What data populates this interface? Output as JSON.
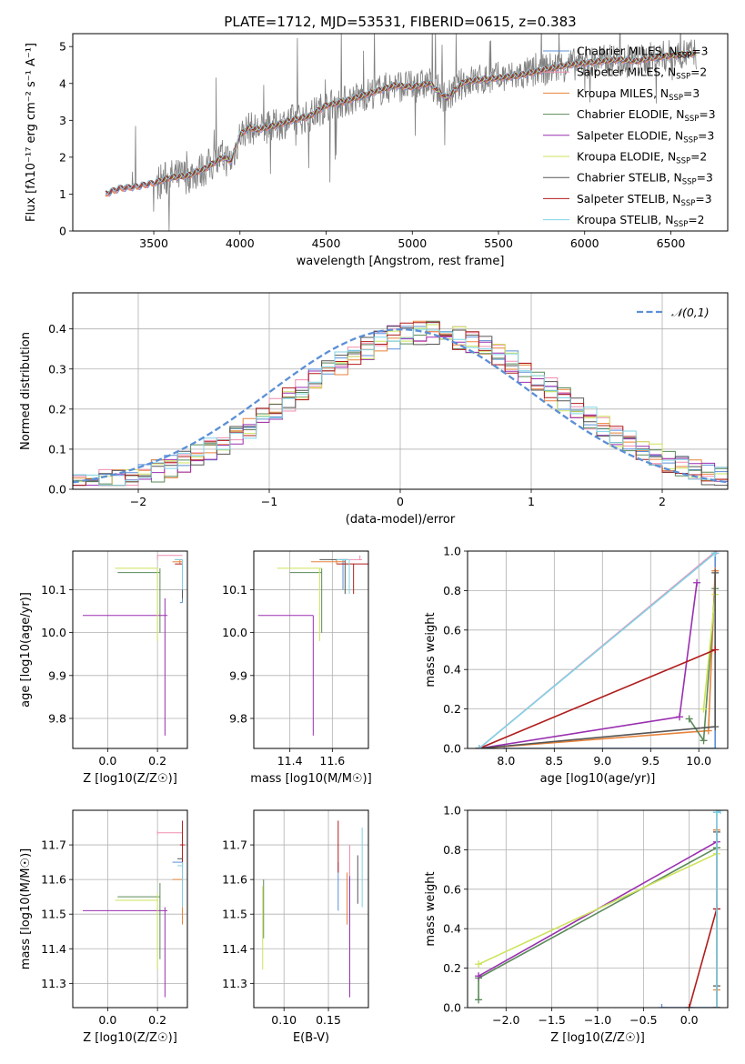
{
  "figure_title": "PLATE=1712, MJD=53531, FIBERID=0615, z=0.383",
  "legend_fits": [
    {
      "label": "Chabrier MILES, N",
      "sub": "SSP",
      "tail": "=3",
      "color": "#5b8fd6"
    },
    {
      "label": "Salpeter MILES, N",
      "sub": "SSP",
      "tail": "=2",
      "color": "#f08db0"
    },
    {
      "label": "Kroupa MILES, N",
      "sub": "SSP",
      "tail": "=3",
      "color": "#e8823a"
    },
    {
      "label": "Chabrier ELODIE, N",
      "sub": "SSP",
      "tail": "=3",
      "color": "#5a8a5a"
    },
    {
      "label": "Salpeter ELODIE, N",
      "sub": "SSP",
      "tail": "=3",
      "color": "#9a2fb0"
    },
    {
      "label": "Kroupa ELODIE, N",
      "sub": "SSP",
      "tail": "=2",
      "color": "#cde35b"
    },
    {
      "label": "Chabrier STELIB, N",
      "sub": "SSP",
      "tail": "=3",
      "color": "#555555"
    },
    {
      "label": "Salpeter STELIB, N",
      "sub": "SSP",
      "tail": "=3",
      "color": "#b01c1c"
    },
    {
      "label": "Kroupa STELIB, N",
      "sub": "SSP",
      "tail": "=2",
      "color": "#7fd3e6"
    }
  ],
  "chart_data": [
    {
      "id": "spectrum",
      "type": "line",
      "xlabel": "wavelength [Angstrom, rest frame]",
      "ylabel": "Flux [fλ10⁻¹⁷ erg cm⁻² s⁻¹ A⁻¹]",
      "xlim": [
        3030,
        6830
      ],
      "ylim": [
        0,
        5.35
      ],
      "xticks": [
        3500,
        4000,
        4500,
        5000,
        5500,
        6000,
        6500
      ],
      "yticks": [
        0,
        1,
        2,
        3,
        4,
        5
      ],
      "grid": false,
      "legend": "right",
      "model_x": [
        3220,
        3300,
        3400,
        3500,
        3600,
        3700,
        3800,
        3900,
        3950,
        4000,
        4050,
        4100,
        4200,
        4300,
        4400,
        4500,
        4600,
        4700,
        4800,
        4900,
        5000,
        5100,
        5200,
        5300,
        5400,
        5500,
        5600,
        5700,
        5800,
        5900,
        6000,
        6100,
        6200,
        6300,
        6400,
        6500,
        6600,
        6650
      ],
      "model_y": [
        1.0,
        1.15,
        1.2,
        1.3,
        1.45,
        1.5,
        1.7,
        2.0,
        1.9,
        2.6,
        2.8,
        2.75,
        2.85,
        3.0,
        3.1,
        3.4,
        3.5,
        3.65,
        3.8,
        3.95,
        3.9,
        4.0,
        3.6,
        4.05,
        4.1,
        4.15,
        4.2,
        4.3,
        4.4,
        4.5,
        4.55,
        4.6,
        4.65,
        4.6,
        4.7,
        4.75,
        4.8,
        4.8
      ],
      "data_noise": "noisy observed spectrum (grey) around the models, 3220-6650 A"
    },
    {
      "id": "residuals",
      "type": "histogram",
      "xlabel": "(data-model)/error",
      "ylabel": "Normed distribution",
      "xlim": [
        -2.5,
        2.5
      ],
      "ylim": [
        0,
        0.49
      ],
      "xticks": [
        -2,
        -1,
        0,
        1,
        2
      ],
      "yticks": [
        0,
        0.1,
        0.2,
        0.3,
        0.4
      ],
      "grid": true,
      "legend": "top-right",
      "legend_label": "𝒩(0,1)",
      "reference": "normal pdf mean 0 sigma 1 (dashed)",
      "bin_width": 0.1,
      "envelope": {
        "mean": 0.2,
        "sigma": 1.0,
        "peak": 0.39
      }
    },
    {
      "id": "age_vs_Z",
      "type": "errorbar",
      "xlabel": "Z [log10(Z/Z☉)]",
      "ylabel": "age  [log10(age/yr)]",
      "xlim": [
        -0.14,
        0.32
      ],
      "ylim": [
        9.73,
        10.19
      ],
      "xticks": [
        0.0,
        0.2
      ],
      "yticks": [
        9.8,
        9.9,
        10.0,
        10.1
      ],
      "grid": true,
      "points": [
        {
          "c": "#5b8fd6",
          "x": 0.3,
          "y": 10.07,
          "xl": 0.29,
          "xh": 0.3,
          "yl": 10.07,
          "yh": 10.17
        },
        {
          "c": "#f08db0",
          "x": 0.2,
          "y": 10.18,
          "xl": 0.2,
          "xh": 0.3,
          "yl": 10.17,
          "yh": 10.18
        },
        {
          "c": "#e8823a",
          "x": 0.29,
          "y": 10.165,
          "xl": 0.26,
          "xh": 0.3,
          "yl": 10.16,
          "yh": 10.17
        },
        {
          "c": "#5a8a5a",
          "x": 0.21,
          "y": 10.14,
          "xl": 0.04,
          "xh": 0.21,
          "yl": 10.0,
          "yh": 10.15
        },
        {
          "c": "#9a2fb0",
          "x": 0.23,
          "y": 10.04,
          "xl": -0.1,
          "xh": 0.24,
          "yl": 9.76,
          "yh": 10.08
        },
        {
          "c": "#cde35b",
          "x": 0.2,
          "y": 10.15,
          "xl": 0.03,
          "xh": 0.2,
          "yl": 9.98,
          "yh": 10.15
        },
        {
          "c": "#555555",
          "x": 0.3,
          "y": 10.17,
          "xl": 0.27,
          "xh": 0.3,
          "yl": 10.08,
          "yh": 10.17
        },
        {
          "c": "#b01c1c",
          "x": 0.3,
          "y": 10.16,
          "xl": 0.27,
          "xh": 0.3,
          "yl": 10.16,
          "yh": 10.17
        },
        {
          "c": "#7fd3e6",
          "x": 0.3,
          "y": 10.17,
          "xl": 0.27,
          "xh": 0.3,
          "yl": 10.1,
          "yh": 10.17
        }
      ]
    },
    {
      "id": "age_vs_mass",
      "type": "errorbar",
      "xlabel": "mass [log10(M/M☉)]",
      "ylabel": "",
      "xlim": [
        11.23,
        11.77
      ],
      "ylim": [
        9.73,
        10.19
      ],
      "xticks": [
        11.4,
        11.6
      ],
      "yticks": [
        9.8,
        9.9,
        10.0,
        10.1
      ],
      "grid": true,
      "points": [
        {
          "c": "#5b8fd6",
          "x": 11.65,
          "y": 10.17,
          "xl": 11.64,
          "xh": 11.67,
          "yl": 10.1,
          "yh": 10.17
        },
        {
          "c": "#f08db0",
          "x": 11.73,
          "y": 10.17,
          "xl": 11.66,
          "xh": 11.74,
          "yl": 10.17,
          "yh": 10.18
        },
        {
          "c": "#e8823a",
          "x": 11.62,
          "y": 10.165,
          "xl": 11.5,
          "xh": 11.66,
          "yl": 10.16,
          "yh": 10.17
        },
        {
          "c": "#5a8a5a",
          "x": 11.55,
          "y": 10.14,
          "xl": 11.4,
          "xh": 11.55,
          "yl": 10.0,
          "yh": 10.15
        },
        {
          "c": "#9a2fb0",
          "x": 11.51,
          "y": 10.04,
          "xl": 11.25,
          "xh": 11.51,
          "yl": 9.76,
          "yh": 10.04
        },
        {
          "c": "#cde35b",
          "x": 11.54,
          "y": 10.15,
          "xl": 11.34,
          "xh": 11.55,
          "yl": 9.98,
          "yh": 10.15
        },
        {
          "c": "#555555",
          "x": 11.66,
          "y": 10.17,
          "xl": 11.54,
          "xh": 11.67,
          "yl": 10.09,
          "yh": 10.17
        },
        {
          "c": "#b01c1c",
          "x": 11.7,
          "y": 10.16,
          "xl": 11.62,
          "xh": 11.77,
          "yl": 10.09,
          "yh": 10.16
        },
        {
          "c": "#7fd3e6",
          "x": 11.68,
          "y": 10.17,
          "xl": 11.62,
          "xh": 11.68,
          "yl": 10.09,
          "yh": 10.17
        }
      ]
    },
    {
      "id": "weight_vs_age",
      "type": "line",
      "xlabel": "age  [log10(age/yr)]",
      "ylabel": "mass weight",
      "xlim": [
        7.6,
        10.3
      ],
      "ylim": [
        0,
        1.0
      ],
      "xticks": [
        8.0,
        8.5,
        9.0,
        9.5,
        10.0
      ],
      "yticks": [
        0,
        0.2,
        0.4,
        0.6,
        0.8,
        1.0
      ],
      "grid": true,
      "series": [
        {
          "c": "#5b8fd6",
          "x": [
            7.98,
            10.17,
            10.17
          ],
          "y": [
            0.0,
            0.0,
            0.99
          ]
        },
        {
          "c": "#f08db0",
          "x": [
            7.72,
            10.18
          ],
          "y": [
            0.0,
            1.0
          ]
        },
        {
          "c": "#e8823a",
          "x": [
            7.72,
            10.1,
            10.17
          ],
          "y": [
            0.0,
            0.09,
            0.9
          ]
        },
        {
          "c": "#5a8a5a",
          "x": [
            9.9,
            10.05,
            10.17
          ],
          "y": [
            0.15,
            0.04,
            0.81
          ]
        },
        {
          "c": "#9a2fb0",
          "x": [
            7.72,
            9.8,
            9.98
          ],
          "y": [
            0.0,
            0.16,
            0.84
          ]
        },
        {
          "c": "#cde35b",
          "x": [
            10.05,
            10.17
          ],
          "y": [
            0.2,
            0.78
          ]
        },
        {
          "c": "#555555",
          "x": [
            7.72,
            10.17,
            10.17
          ],
          "y": [
            0.0,
            0.11,
            0.89
          ]
        },
        {
          "c": "#b01c1c",
          "x": [
            7.72,
            10.17
          ],
          "y": [
            0.0,
            0.5
          ]
        },
        {
          "c": "#7fd3e6",
          "x": [
            7.72,
            10.17
          ],
          "y": [
            0.0,
            0.99
          ]
        }
      ]
    },
    {
      "id": "mass_vs_Z",
      "type": "errorbar",
      "xlabel": "Z [log10(Z/Z☉)]",
      "ylabel": "mass [log10(M/M☉)]",
      "xlim": [
        -0.14,
        0.32
      ],
      "ylim": [
        11.23,
        11.8
      ],
      "xticks": [
        0.0,
        0.2
      ],
      "yticks": [
        11.3,
        11.4,
        11.5,
        11.6,
        11.7
      ],
      "grid": true,
      "points": [
        {
          "c": "#5b8fd6",
          "x": 0.3,
          "y": 11.65,
          "xl": 0.26,
          "xh": 0.3,
          "yl": 11.59,
          "yh": 11.66
        },
        {
          "c": "#f08db0",
          "x": 0.2,
          "y": 11.735,
          "xl": 0.2,
          "xh": 0.3,
          "yl": 11.73,
          "yh": 11.74
        },
        {
          "c": "#e8823a",
          "x": 0.3,
          "y": 11.6,
          "xl": 0.26,
          "xh": 0.3,
          "yl": 11.47,
          "yh": 11.62
        },
        {
          "c": "#5a8a5a",
          "x": 0.21,
          "y": 11.55,
          "xl": 0.04,
          "xh": 0.21,
          "yl": 11.37,
          "yh": 11.59
        },
        {
          "c": "#9a2fb0",
          "x": 0.23,
          "y": 11.51,
          "xl": -0.1,
          "xh": 0.24,
          "yl": 11.26,
          "yh": 11.52
        },
        {
          "c": "#cde35b",
          "x": 0.2,
          "y": 11.54,
          "xl": 0.03,
          "xh": 0.2,
          "yl": 11.34,
          "yh": 11.56
        },
        {
          "c": "#555555",
          "x": 0.3,
          "y": 11.66,
          "xl": 0.28,
          "xh": 0.3,
          "yl": 11.53,
          "yh": 11.67
        },
        {
          "c": "#b01c1c",
          "x": 0.3,
          "y": 11.7,
          "xl": 0.29,
          "xh": 0.31,
          "yl": 11.62,
          "yh": 11.77
        },
        {
          "c": "#7fd3e6",
          "x": 0.3,
          "y": 11.64,
          "xl": 0.28,
          "xh": 0.3,
          "yl": 11.52,
          "yh": 11.65
        }
      ]
    },
    {
      "id": "mass_vs_ebv",
      "type": "errorbar",
      "xlabel": "E(B-V)",
      "ylabel": "",
      "xlim": [
        0.066,
        0.195
      ],
      "ylim": [
        11.23,
        11.8
      ],
      "xticks": [
        0.1,
        0.15
      ],
      "yticks": [
        11.3,
        11.4,
        11.5,
        11.6,
        11.7
      ],
      "grid": true,
      "points": [
        {
          "c": "#5b8fd6",
          "x": 0.161,
          "y": 11.6,
          "yl": 11.51,
          "yh": 11.65
        },
        {
          "c": "#f08db0",
          "x": 0.174,
          "y": 11.62,
          "yl": 11.5,
          "yh": 11.7
        },
        {
          "c": "#e8823a",
          "x": 0.171,
          "y": 11.55,
          "yl": 11.47,
          "yh": 11.62
        },
        {
          "c": "#5a8a5a",
          "x": 0.077,
          "y": 11.55,
          "yl": 11.43,
          "yh": 11.6
        },
        {
          "c": "#9a2fb0",
          "x": 0.174,
          "y": 11.45,
          "yl": 11.26,
          "yh": 11.61
        },
        {
          "c": "#cde35b",
          "x": 0.076,
          "y": 11.45,
          "yl": 11.34,
          "yh": 11.58
        },
        {
          "c": "#555555",
          "x": 0.183,
          "y": 11.6,
          "yl": 11.53,
          "yh": 11.67
        },
        {
          "c": "#b01c1c",
          "x": 0.161,
          "y": 11.7,
          "yl": 11.62,
          "yh": 11.77
        },
        {
          "c": "#7fd3e6",
          "x": 0.188,
          "y": 11.64,
          "yl": 11.52,
          "yh": 11.75
        }
      ]
    },
    {
      "id": "weight_vs_Z",
      "type": "line",
      "xlabel": "Z [log10(Z/Z☉)]",
      "ylabel": "mass weight",
      "xlim": [
        -2.42,
        0.42
      ],
      "ylim": [
        0,
        1.0
      ],
      "xticks": [
        -2.0,
        -1.5,
        -1.0,
        -0.5,
        0.0
      ],
      "yticks": [
        0,
        0.2,
        0.4,
        0.6,
        0.8,
        1.0
      ],
      "grid": true,
      "series": [
        {
          "c": "#5b8fd6",
          "x": [
            -0.3,
            0.0,
            0.3,
            0.3
          ],
          "y": [
            0.0,
            0.0,
            0.0,
            0.99
          ]
        },
        {
          "c": "#f08db0",
          "x": [
            0.3,
            0.3
          ],
          "y": [
            0.0,
            1.0
          ]
        },
        {
          "c": "#e8823a",
          "x": [
            0.3,
            0.3,
            0.3
          ],
          "y": [
            0.0,
            0.09,
            0.9
          ]
        },
        {
          "c": "#5a8a5a",
          "x": [
            -2.3,
            -2.3,
            0.3,
            0.3
          ],
          "y": [
            0.04,
            0.15,
            0.81,
            0.81
          ]
        },
        {
          "c": "#9a2fb0",
          "x": [
            -2.3,
            0.3
          ],
          "y": [
            0.16,
            0.84
          ]
        },
        {
          "c": "#cde35b",
          "x": [
            -2.3,
            0.3
          ],
          "y": [
            0.22,
            0.78
          ]
        },
        {
          "c": "#555555",
          "x": [
            0.3,
            0.3,
            0.3
          ],
          "y": [
            0.0,
            0.11,
            0.89
          ]
        },
        {
          "c": "#b01c1c",
          "x": [
            0.0,
            0.3,
            0.3
          ],
          "y": [
            0.0,
            0.5,
            0.5
          ]
        },
        {
          "c": "#7fd3e6",
          "x": [
            0.3,
            0.3,
            0.34
          ],
          "y": [
            0.0,
            0.99,
            1.0
          ]
        }
      ]
    }
  ]
}
